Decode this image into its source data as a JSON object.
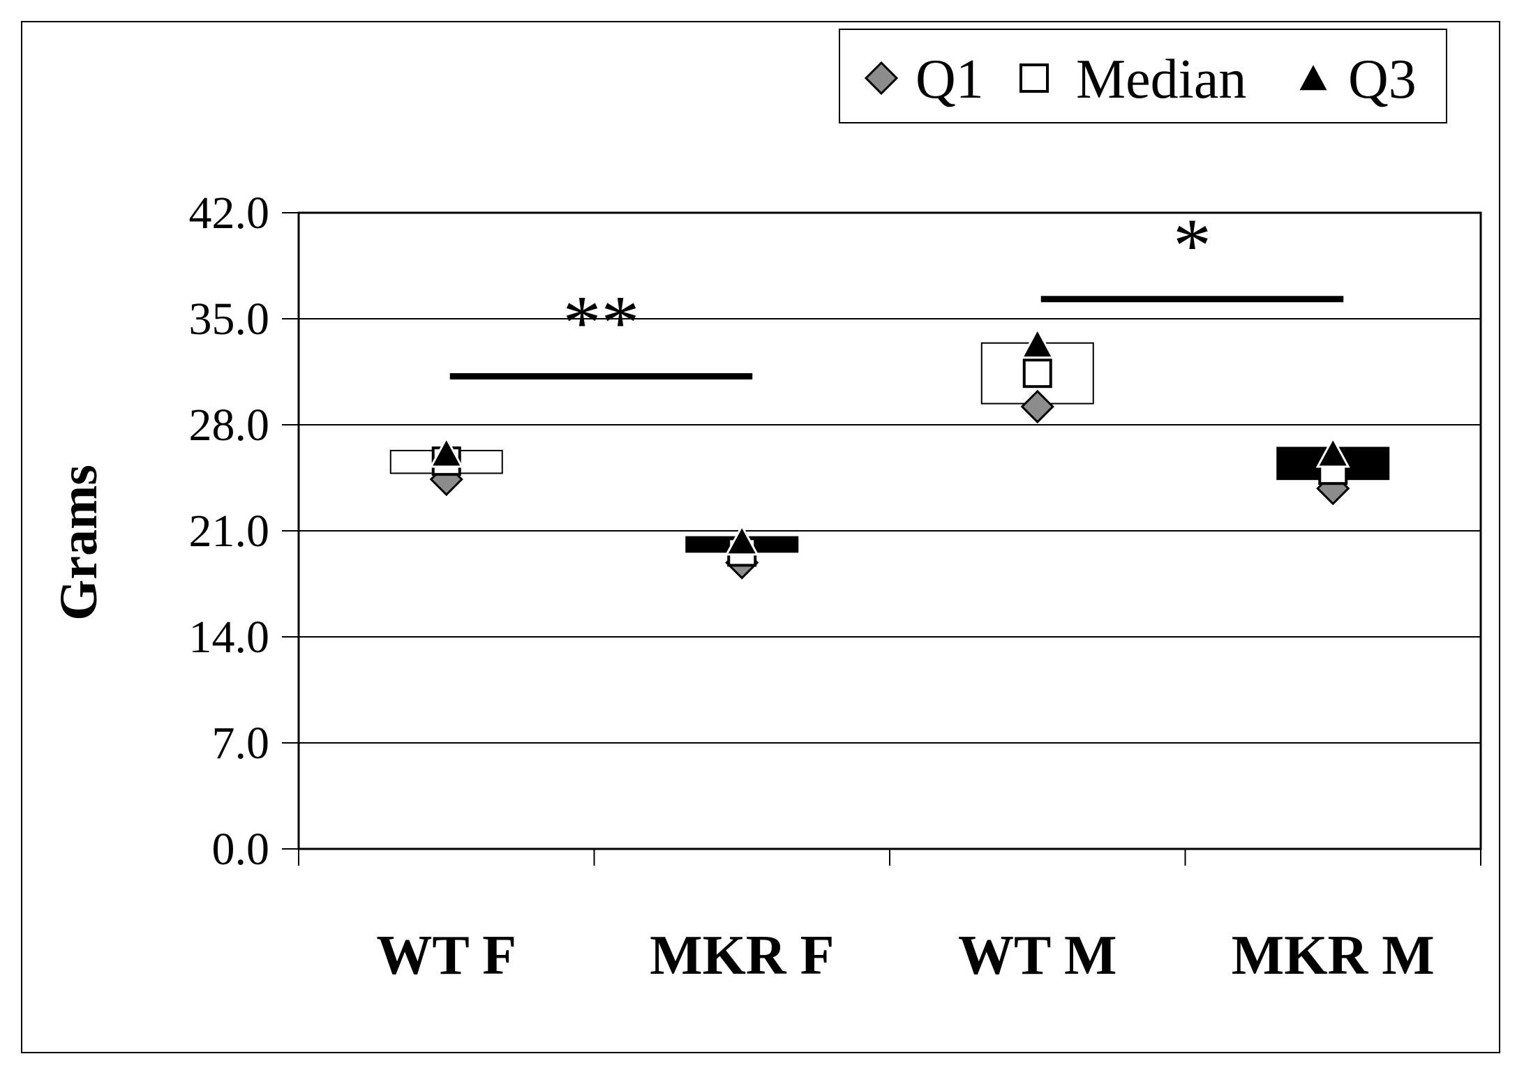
{
  "chart_data": {
    "type": "box",
    "title": "",
    "xlabel": "",
    "ylabel": "Grams",
    "ylim": [
      0,
      42
    ],
    "y_ticks": [
      "0.0",
      "7.0",
      "14.0",
      "21.0",
      "28.0",
      "35.0",
      "42.0"
    ],
    "y_tick_values": [
      0,
      7,
      14,
      21,
      28,
      35,
      42
    ],
    "grid": true,
    "legend_placement": "top-right",
    "categories": [
      "WT F",
      "MKR F",
      "WT M",
      "MKR M"
    ],
    "series": [
      {
        "name": "Q1",
        "marker": "diamond",
        "values": [
          24.4,
          18.9,
          29.2,
          23.8
        ]
      },
      {
        "name": "Median",
        "marker": "square",
        "values": [
          25.6,
          19.6,
          31.4,
          25.0
        ]
      },
      {
        "name": "Q3",
        "marker": "triangle",
        "values": [
          26.1,
          20.3,
          33.3,
          26.1
        ]
      }
    ],
    "boxes": [
      {
        "category": "WT F",
        "low": 24.8,
        "high": 26.3,
        "fill": "#ffffff"
      },
      {
        "category": "MKR F",
        "low": 19.6,
        "high": 20.6,
        "fill": "#000000"
      },
      {
        "category": "WT M",
        "low": 29.4,
        "high": 33.4,
        "fill": "#ffffff"
      },
      {
        "category": "MKR M",
        "low": 24.4,
        "high": 26.5,
        "fill": "#000000"
      }
    ],
    "annotations": [
      {
        "text": "**",
        "from": "WT F",
        "to": "MKR F",
        "line_y": 31.2
      },
      {
        "text": "*",
        "from": "WT M",
        "to": "MKR M",
        "line_y": 36.3
      }
    ],
    "colors": {
      "q1_marker": "#8c8c8c",
      "box_light": "#ffffff",
      "box_dark": "#000000"
    }
  }
}
